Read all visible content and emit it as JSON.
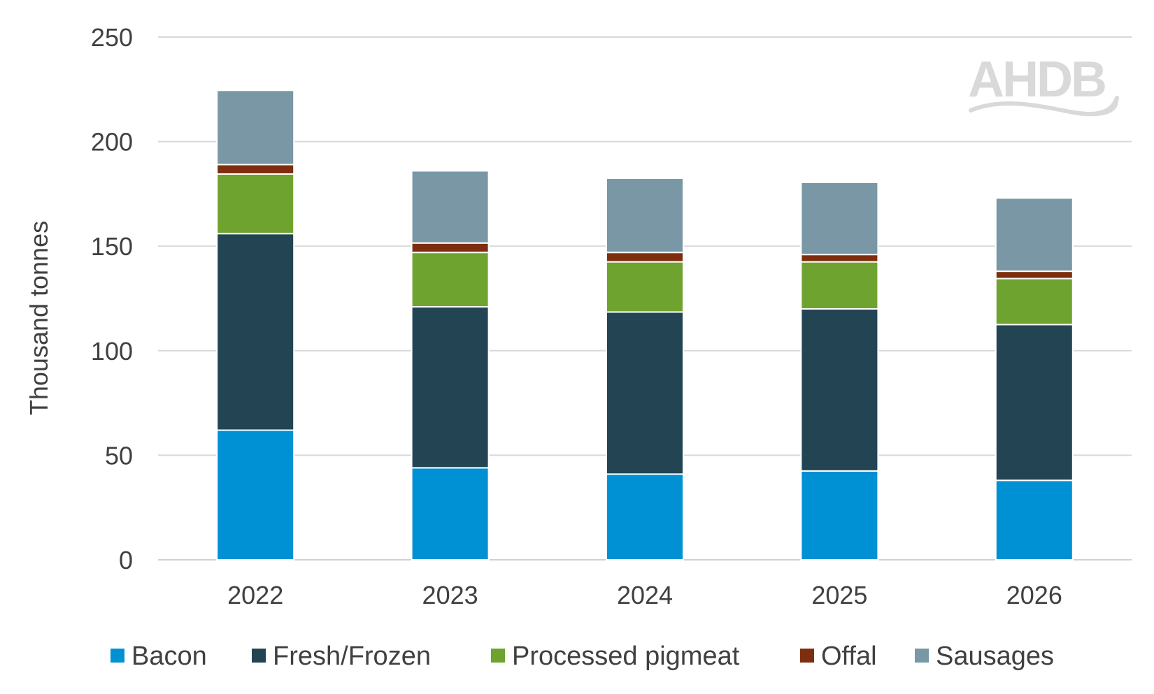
{
  "chart_data": {
    "type": "bar",
    "stacked": true,
    "categories": [
      "2022",
      "2023",
      "2024",
      "2025",
      "2026"
    ],
    "series": [
      {
        "name": "Bacon",
        "color": "#0090d4",
        "values": [
          62,
          44,
          41,
          42.5,
          38
        ]
      },
      {
        "name": "Fresh/Frozen",
        "color": "#224453",
        "values": [
          94,
          77,
          77.5,
          77.5,
          74.5
        ]
      },
      {
        "name": "Processed pigmeat",
        "color": "#6ea32f",
        "values": [
          28.5,
          26,
          24,
          22.5,
          22
        ]
      },
      {
        "name": "Offal",
        "color": "#7d2e0e",
        "values": [
          4.5,
          4.5,
          4.5,
          3.5,
          3.5
        ]
      },
      {
        "name": "Sausages",
        "color": "#7997a5",
        "values": [
          35.5,
          34.5,
          35.5,
          34.5,
          35
        ]
      }
    ],
    "ylabel": "Thousand tonnes",
    "xlabel": "",
    "ylim": [
      0,
      250
    ],
    "yticks": [
      0,
      50,
      100,
      150,
      200,
      250
    ],
    "grid": true,
    "legend_position": "bottom",
    "watermark": "AHDB"
  }
}
